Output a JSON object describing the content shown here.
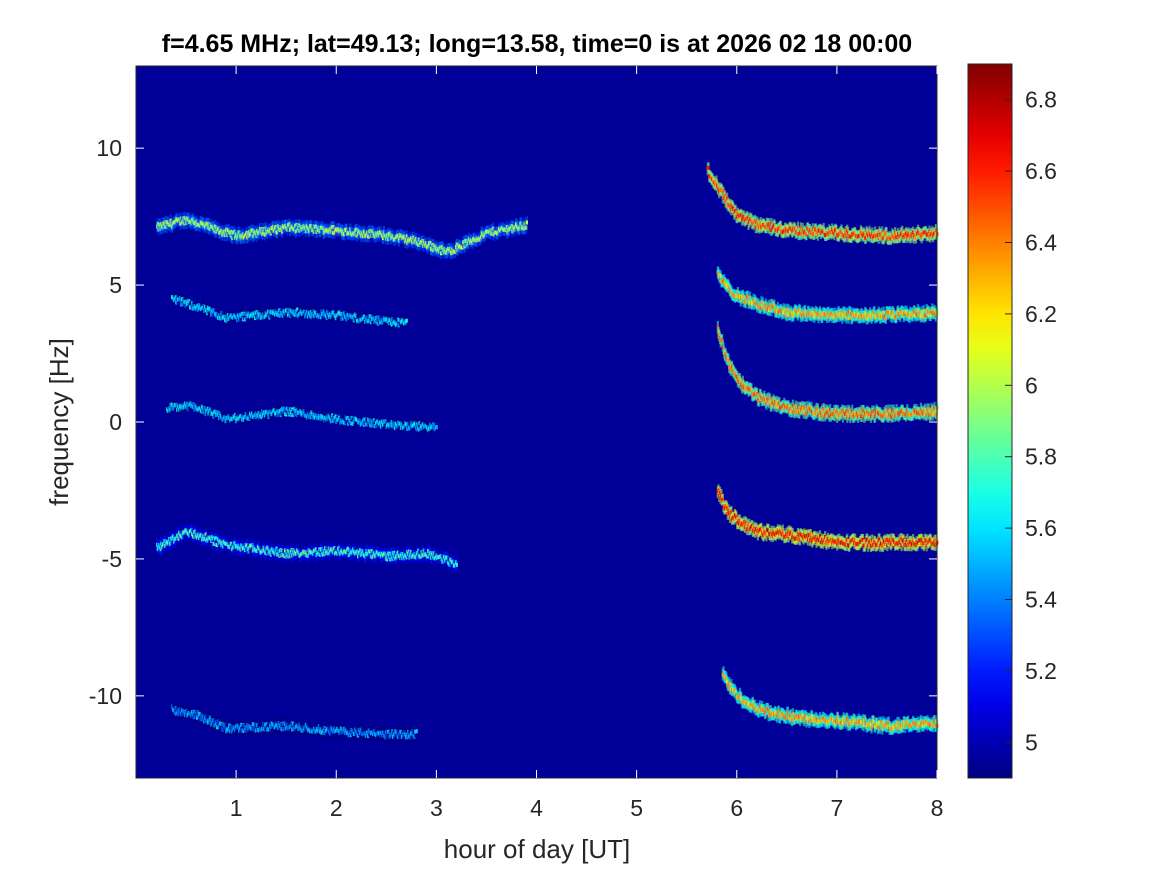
{
  "chart_data": {
    "type": "heatmap",
    "title": "f=4.65 MHz;  lat=49.13; long=13.58, time=0 is at 2026 02 18 00:00",
    "xlabel": "hour of day [UT]",
    "ylabel": "frequency [Hz]",
    "xlim": [
      0,
      8
    ],
    "ylim": [
      -13,
      13
    ],
    "xticks": [
      1,
      2,
      3,
      4,
      5,
      6,
      7,
      8
    ],
    "yticks": [
      10,
      5,
      0,
      -5,
      -10
    ],
    "colorbar": {
      "colormap": "jet",
      "range": [
        4.9,
        6.9
      ],
      "ticks": [
        5,
        5.2,
        5.4,
        5.6,
        5.8,
        6,
        6.2,
        6.4,
        6.6,
        6.8
      ]
    },
    "background_value": 4.95,
    "traces": [
      {
        "x": [
          0.2,
          0.5,
          0.8,
          1.0,
          1.5,
          2.0,
          2.5,
          2.8,
          3.1,
          3.5,
          3.9
        ],
        "y": [
          7.1,
          7.4,
          7.0,
          6.8,
          7.1,
          7.0,
          6.8,
          6.6,
          6.2,
          6.9,
          7.2
        ],
        "intensity": 6.1
      },
      {
        "x": [
          0.35,
          0.6,
          0.9,
          1.5,
          2.0,
          2.4,
          2.7
        ],
        "y": [
          4.5,
          4.2,
          3.8,
          4.0,
          3.9,
          3.7,
          3.6
        ],
        "intensity": 5.7
      },
      {
        "x": [
          0.3,
          0.55,
          0.9,
          1.5,
          2.0,
          2.5,
          3.0
        ],
        "y": [
          0.5,
          0.6,
          0.1,
          0.4,
          0.1,
          -0.1,
          -0.2
        ],
        "intensity": 5.7
      },
      {
        "x": [
          0.2,
          0.5,
          0.9,
          1.5,
          2.0,
          2.5,
          2.9,
          3.2
        ],
        "y": [
          -4.6,
          -4.0,
          -4.5,
          -4.8,
          -4.7,
          -4.9,
          -4.8,
          -5.2
        ],
        "intensity": 5.9
      },
      {
        "x": [
          0.35,
          0.6,
          0.9,
          1.5,
          2.0,
          2.5,
          2.8
        ],
        "y": [
          -10.5,
          -10.7,
          -11.2,
          -11.1,
          -11.3,
          -11.4,
          -11.4
        ],
        "intensity": 5.6
      },
      {
        "x": [
          5.7,
          5.8,
          5.9,
          6.0,
          6.2,
          6.5,
          7.0,
          7.5,
          8.0
        ],
        "y": [
          9.2,
          8.6,
          8.0,
          7.5,
          7.2,
          7.0,
          6.9,
          6.8,
          6.9
        ],
        "intensity": 6.7
      },
      {
        "x": [
          5.8,
          5.9,
          6.0,
          6.2,
          6.5,
          7.0,
          7.5,
          8.0
        ],
        "y": [
          5.4,
          4.9,
          4.6,
          4.3,
          4.0,
          3.9,
          3.9,
          4.0
        ],
        "intensity": 6.5
      },
      {
        "x": [
          5.8,
          5.9,
          6.0,
          6.2,
          6.5,
          7.0,
          7.5,
          8.0
        ],
        "y": [
          3.4,
          2.2,
          1.5,
          0.9,
          0.5,
          0.3,
          0.3,
          0.4
        ],
        "intensity": 6.6
      },
      {
        "x": [
          5.8,
          5.9,
          6.0,
          6.2,
          6.5,
          7.0,
          7.5,
          8.0
        ],
        "y": [
          -2.5,
          -3.3,
          -3.6,
          -4.0,
          -4.1,
          -4.4,
          -4.4,
          -4.4
        ],
        "intensity": 6.8
      },
      {
        "x": [
          5.85,
          5.95,
          6.1,
          6.3,
          6.6,
          7.0,
          7.5,
          8.0
        ],
        "y": [
          -9.2,
          -9.8,
          -10.3,
          -10.6,
          -10.8,
          -10.9,
          -11.1,
          -11.0
        ],
        "intensity": 6.5
      }
    ]
  }
}
